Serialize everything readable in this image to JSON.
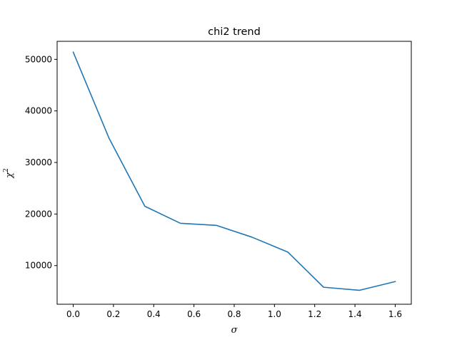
{
  "chart_data": {
    "type": "line",
    "title": "chi2 trend",
    "xlabel": "σ",
    "ylabel_base": "χ",
    "ylabel_sup": "2",
    "xlim": [
      -0.08,
      1.68
    ],
    "ylim": [
      2500,
      53500
    ],
    "x_ticks": [
      0.0,
      0.2,
      0.4,
      0.6,
      0.8,
      1.0,
      1.2,
      1.4,
      1.6
    ],
    "x_tick_labels": [
      "0.0",
      "0.2",
      "0.4",
      "0.6",
      "0.8",
      "1.0",
      "1.2",
      "1.4",
      "1.6"
    ],
    "y_ticks": [
      10000,
      20000,
      30000,
      40000,
      50000
    ],
    "y_tick_labels": [
      "10000",
      "20000",
      "30000",
      "40000",
      "50000"
    ],
    "grid": false,
    "series": [
      {
        "color": "#1f77b4",
        "x": [
          0.0,
          0.178,
          0.356,
          0.533,
          0.711,
          0.889,
          1.067,
          1.244,
          1.422,
          1.6
        ],
        "y": [
          51400,
          34700,
          21500,
          18200,
          17800,
          15500,
          12600,
          5800,
          5200,
          6900
        ]
      }
    ]
  }
}
